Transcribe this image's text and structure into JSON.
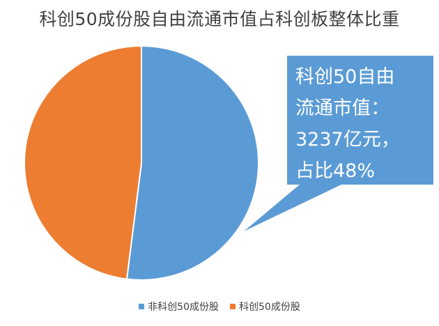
{
  "chart_data": {
    "type": "pie",
    "title": "科创50成份股自由流通市值占科创板整体比重",
    "series": [
      {
        "name": "非科创50成份股",
        "value": 52,
        "color": "#5B9BD5"
      },
      {
        "name": "科创50成份股",
        "value": 48,
        "color": "#ED7D31"
      }
    ],
    "legend_position": "bottom",
    "annotation": {
      "lines": [
        "科创50自由",
        "流通市值：",
        "3237亿元，",
        "占比48%"
      ],
      "fill": "#5B9BD5",
      "text_color": "#ffffff"
    }
  }
}
